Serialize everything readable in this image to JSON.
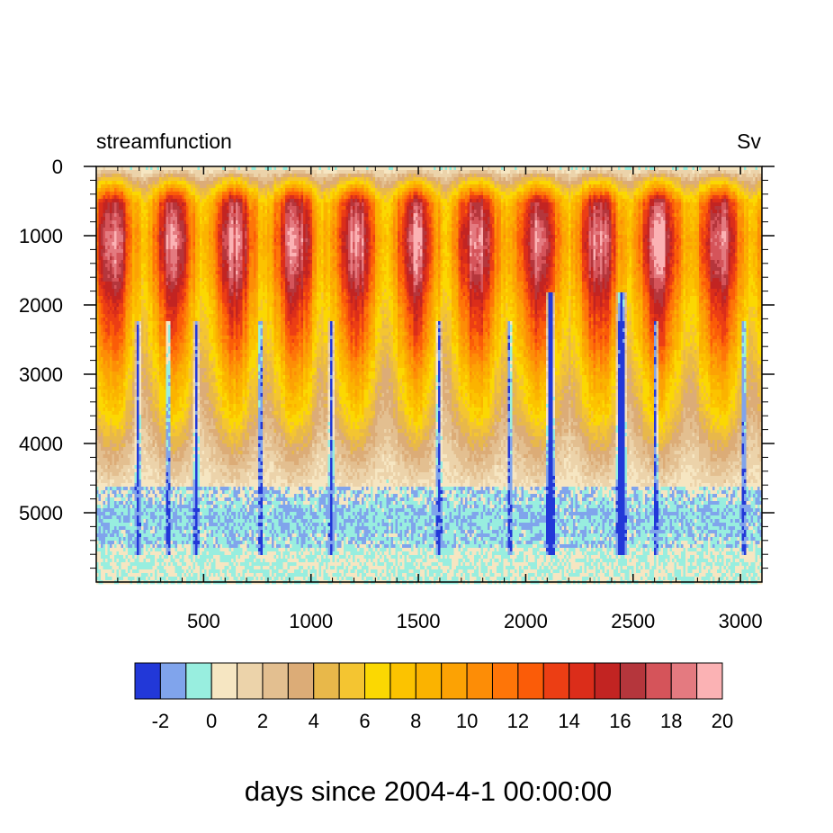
{
  "chart_data": {
    "type": "heatmap",
    "title_left": "streamfunction",
    "title_right": "Sv",
    "xlabel": "days since 2004-4-1 00:00:00",
    "ylabel": "",
    "xlim": [
      0,
      3100
    ],
    "ylim": [
      0,
      6000
    ],
    "y_inverted": true,
    "x_ticks": [
      500,
      1000,
      1500,
      2000,
      2500,
      3000
    ],
    "y_ticks": [
      0,
      1000,
      2000,
      3000,
      4000,
      5000
    ],
    "colorbar": {
      "levels": [
        -3,
        -2,
        -1,
        0,
        1,
        2,
        3,
        4,
        5,
        6,
        7,
        8,
        9,
        10,
        11,
        12,
        13,
        14,
        15,
        16,
        17,
        18,
        19,
        20,
        21
      ],
      "labels": [
        "-2",
        "0",
        "2",
        "4",
        "6",
        "8",
        "10",
        "12",
        "14",
        "16",
        "18",
        "20"
      ],
      "colors": [
        "#2238d8",
        "#80a4ec",
        "#98eedf",
        "#f6e6c2",
        "#ecd3aa",
        "#e3bf90",
        "#dcac77",
        "#e8b84a",
        "#f4c531",
        "#fbd802",
        "#fcc300",
        "#fbb300",
        "#fca204",
        "#fd8d06",
        "#fe7508",
        "#fb5c08",
        "#ec3e14",
        "#db2d1a",
        "#c22422",
        "#b5363c",
        "#d5545a",
        "#e47a80",
        "#fbb2b4"
      ]
    },
    "field_summary": {
      "description_levels_depth_m": [
        0,
        500,
        1000,
        1500,
        2000,
        2500,
        3000,
        3500,
        4000,
        4500,
        5000,
        5500,
        6000
      ],
      "typical_profile_sv": [
        0.5,
        16,
        18.5,
        17,
        14,
        12,
        9,
        7,
        4,
        1.5,
        -1,
        0,
        0
      ],
      "weak_events_days": [
        190,
        330,
        460,
        760,
        1090,
        1590,
        1920,
        2110,
        2440,
        2600,
        3010
      ],
      "strong_events_days": [
        2110,
        2440
      ]
    }
  }
}
